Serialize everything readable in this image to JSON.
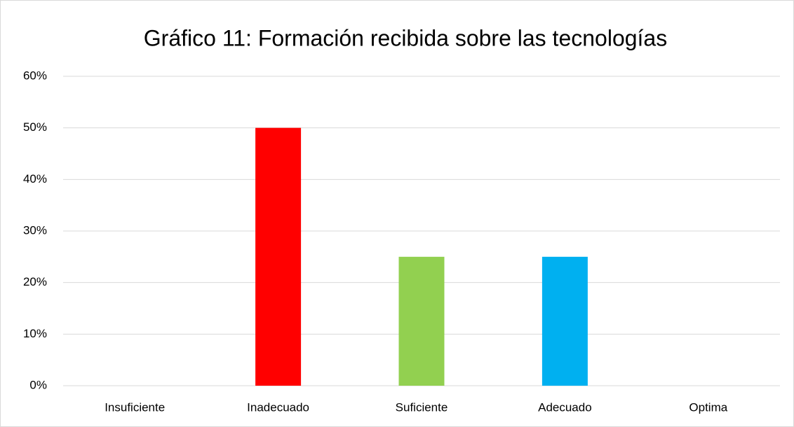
{
  "chart_data": {
    "type": "bar",
    "title": "Gráfico 11: Formación recibida sobre las tecnologías",
    "categories": [
      "Insuficiente",
      "Inadecuado",
      "Suficiente",
      "Adecuado",
      "Optima"
    ],
    "values": [
      0,
      50,
      25,
      25,
      0
    ],
    "colors": [
      null,
      "#ff0000",
      "#92d050",
      "#00b0f0",
      null
    ],
    "ylim": [
      0,
      60
    ],
    "yticks": [
      {
        "value": 0,
        "label": "0%"
      },
      {
        "value": 10,
        "label": "10%"
      },
      {
        "value": 20,
        "label": "20%"
      },
      {
        "value": 30,
        "label": "30%"
      },
      {
        "value": 40,
        "label": "40%"
      },
      {
        "value": 50,
        "label": "50%"
      },
      {
        "value": 60,
        "label": "60%"
      }
    ],
    "grid": true
  }
}
